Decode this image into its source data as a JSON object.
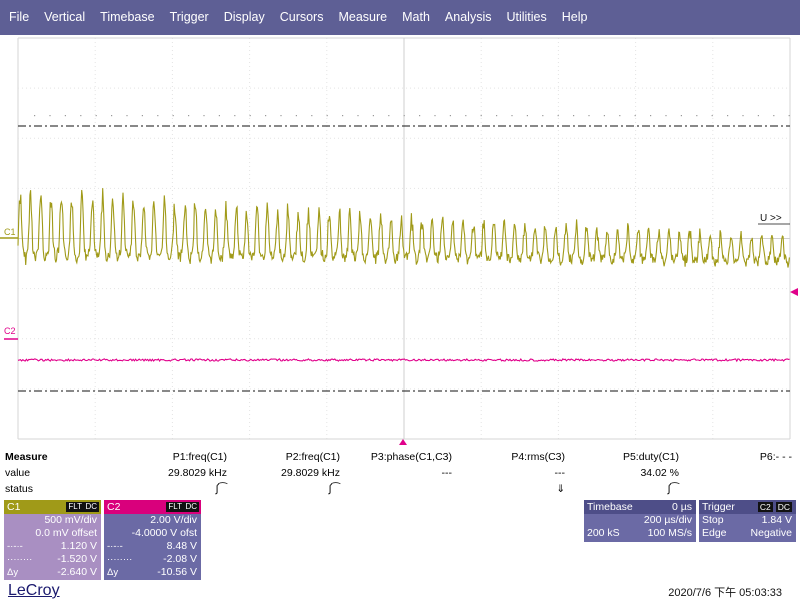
{
  "menu": [
    "File",
    "Vertical",
    "Timebase",
    "Trigger",
    "Display",
    "Cursors",
    "Measure",
    "Math",
    "Analysis",
    "Utilities",
    "Help"
  ],
  "plot": {
    "c1_label": "C1",
    "c2_label": "C2",
    "cursor_label": "U >>",
    "c1_color": "#a09a18",
    "c2_color": "#e0008a",
    "marker_color": "#e0008a"
  },
  "measure": {
    "title": "Measure",
    "row_value_label": "value",
    "row_status_label": "status",
    "params": [
      {
        "name": "P1:freq(C1)",
        "value": "29.8029 kHz",
        "status": "∫⁀"
      },
      {
        "name": "P2:freq(C1)",
        "value": "29.8029 kHz",
        "status": "∫⁀"
      },
      {
        "name": "P3:phase(C1,C3)",
        "value": "---",
        "status": ""
      },
      {
        "name": "P4:rms(C3)",
        "value": "---",
        "status": "⇓"
      },
      {
        "name": "P5:duty(C1)",
        "value": "34.02 %",
        "status": "∫⁀"
      },
      {
        "name": "P6:- - -",
        "value": "",
        "status": ""
      }
    ]
  },
  "c1": {
    "name": "C1",
    "tags": [
      "FLT",
      "DC"
    ],
    "vdiv": "500 mV/div",
    "offset": "0.0 mV offset",
    "cursor1": "1.120 V",
    "cursor2": "-1.520 V",
    "delta_label": "Δy",
    "delta": "-2.640 V"
  },
  "c2": {
    "name": "C2",
    "tags": [
      "FLT",
      "DC"
    ],
    "vdiv": "2.00 V/div",
    "offset": "-4.0000 V ofst",
    "cursor1": "8.48 V",
    "cursor2": "-2.08 V",
    "delta_label": "Δy",
    "delta": "-10.56 V"
  },
  "timebase": {
    "title": "Timebase",
    "delay": "0 µs",
    "tdiv": "200 µs/div",
    "samples": "200 kS",
    "rate": "100 MS/s"
  },
  "trigger": {
    "title": "Trigger",
    "source": "C2",
    "source_tag": "DC",
    "mode": "Stop",
    "level": "1.84 V",
    "type": "Edge",
    "slope": "Negative"
  },
  "brand": "LeCroy",
  "timestamp": "2020/7/6 下午 05:03:33"
}
